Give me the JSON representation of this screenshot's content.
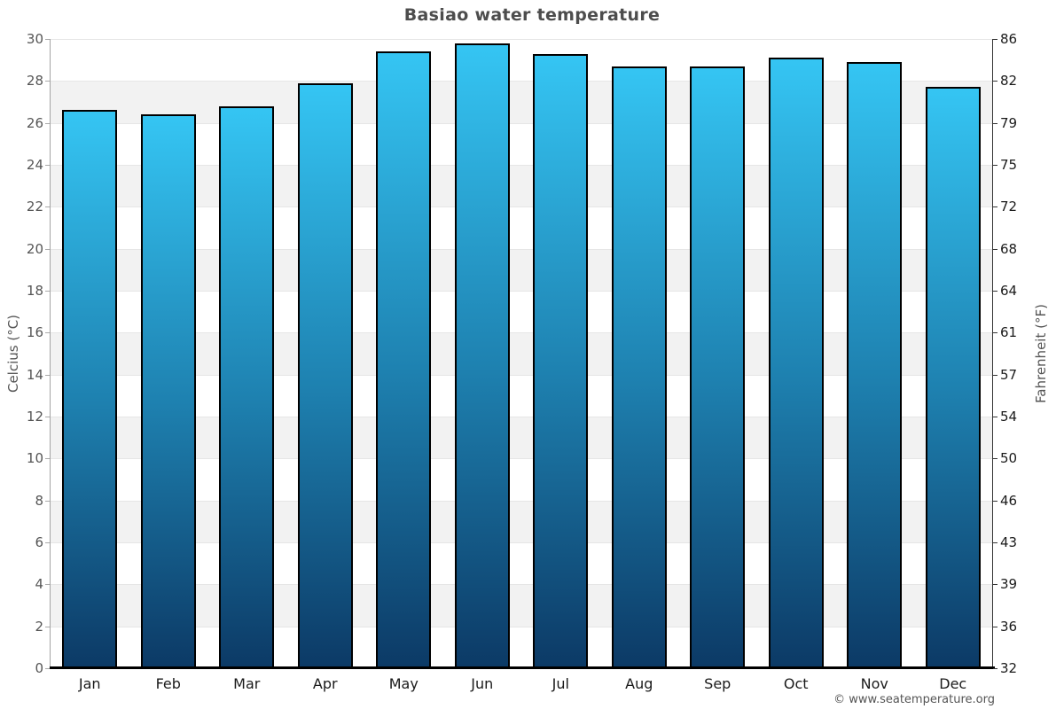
{
  "title": "Basiao water temperature",
  "footer": "© www.seatemperature.org",
  "axes": {
    "left_title": "Celcius (°C)",
    "right_title": "Fahrenheit (°F)",
    "celsius_ticks": [
      0,
      2,
      4,
      6,
      8,
      10,
      12,
      14,
      16,
      18,
      20,
      22,
      24,
      26,
      28,
      30
    ],
    "fahrenheit_ticks": [
      32,
      36,
      39,
      43,
      46,
      50,
      54,
      57,
      61,
      64,
      68,
      72,
      75,
      79,
      82,
      86
    ]
  },
  "chart_data": {
    "type": "bar",
    "title": "Basiao water temperature",
    "categories": [
      "Jan",
      "Feb",
      "Mar",
      "Apr",
      "May",
      "Jun",
      "Jul",
      "Aug",
      "Sep",
      "Oct",
      "Nov",
      "Dec"
    ],
    "values": [
      26.6,
      26.4,
      26.8,
      27.9,
      29.4,
      29.8,
      29.3,
      28.7,
      28.7,
      29.1,
      28.9,
      27.7
    ],
    "unit": "°C",
    "ylabel_left": "Celcius (°C)",
    "ylabel_right": "Fahrenheit (°F)",
    "ylim": [
      0,
      30
    ],
    "grid": true,
    "band_fill_color": "#f2f2f2",
    "gridline_color": "#e6e6e6",
    "bar_gradient_top": "#35c5f3",
    "bar_gradient_mid": "#1e81b0",
    "bar_gradient_bottom": "#0c3a66",
    "bar_border_color": "#000000"
  },
  "colors": {
    "title_text": "#4d4d4d",
    "left_tick_text": "#555555",
    "right_tick_text": "#1a1a1a",
    "month_text": "#1a1a1a",
    "footer_text": "#555555",
    "left_axis_line": "#a3a3a3",
    "right_axis_line": "#333333",
    "bottom_axis_line": "#000000"
  }
}
